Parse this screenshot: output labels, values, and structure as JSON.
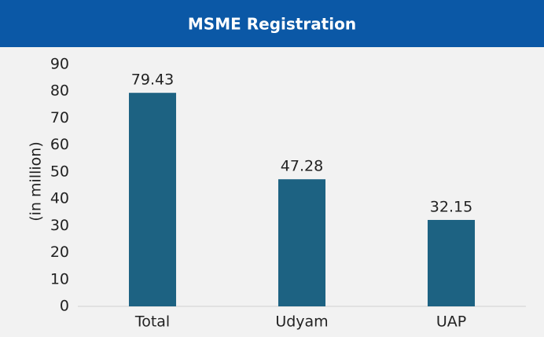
{
  "chart_data": {
    "type": "bar",
    "title": "MSME Registration",
    "y_label": "(in million)",
    "categories": [
      "Total",
      "Udyam",
      "UAP"
    ],
    "values": [
      79.43,
      47.28,
      32.15
    ],
    "color": "#1d6282",
    "ylim": [
      0,
      90
    ],
    "yticks": [
      0,
      10,
      20,
      30,
      40,
      50,
      60,
      70,
      80,
      90
    ],
    "grid": false
  }
}
